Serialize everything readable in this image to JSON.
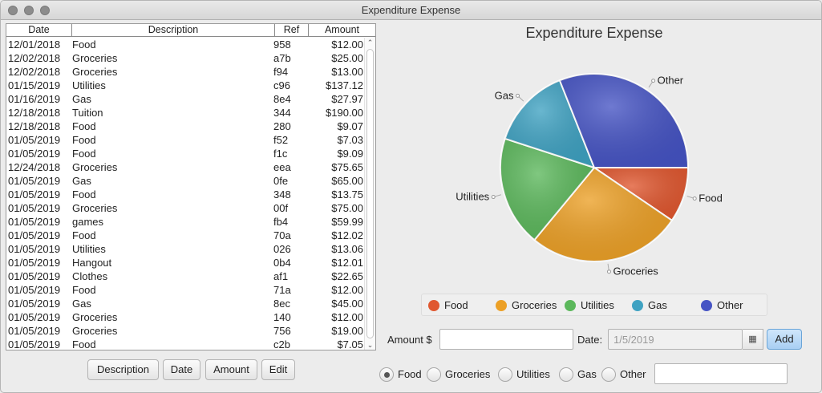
{
  "window": {
    "title": "Expenditure Expense"
  },
  "table": {
    "headers": {
      "date": "Date",
      "description": "Description",
      "ref": "Ref",
      "amount": "Amount"
    },
    "rows": [
      {
        "date": "12/01/2018",
        "description": "Food",
        "ref": "958",
        "amount": "$12.00"
      },
      {
        "date": "12/02/2018",
        "description": "Groceries",
        "ref": "a7b",
        "amount": "$25.00"
      },
      {
        "date": "12/02/2018",
        "description": "Groceries",
        "ref": "f94",
        "amount": "$13.00"
      },
      {
        "date": "01/15/2019",
        "description": "Utilities",
        "ref": "c96",
        "amount": "$137.12"
      },
      {
        "date": "01/16/2019",
        "description": "Gas",
        "ref": "8e4",
        "amount": "$27.97"
      },
      {
        "date": "12/18/2018",
        "description": "Tuition",
        "ref": "344",
        "amount": "$190.00"
      },
      {
        "date": "12/18/2018",
        "description": "Food",
        "ref": "280",
        "amount": "$9.07"
      },
      {
        "date": "01/05/2019",
        "description": "Food",
        "ref": "f52",
        "amount": "$7.03"
      },
      {
        "date": "01/05/2019",
        "description": "Food",
        "ref": "f1c",
        "amount": "$9.09"
      },
      {
        "date": "12/24/2018",
        "description": "Groceries",
        "ref": "eea",
        "amount": "$75.65"
      },
      {
        "date": "01/05/2019",
        "description": "Gas",
        "ref": "0fe",
        "amount": "$65.00"
      },
      {
        "date": "01/05/2019",
        "description": "Food",
        "ref": "348",
        "amount": "$13.75"
      },
      {
        "date": "01/05/2019",
        "description": "Groceries",
        "ref": "00f",
        "amount": "$75.00"
      },
      {
        "date": "01/05/2019",
        "description": "games",
        "ref": "fb4",
        "amount": "$59.99"
      },
      {
        "date": "01/05/2019",
        "description": "Food",
        "ref": "70a",
        "amount": "$12.02"
      },
      {
        "date": "01/05/2019",
        "description": "Utilities",
        "ref": "026",
        "amount": "$13.06"
      },
      {
        "date": "01/05/2019",
        "description": "Hangout",
        "ref": "0b4",
        "amount": "$12.01"
      },
      {
        "date": "01/05/2019",
        "description": "Clothes",
        "ref": "af1",
        "amount": "$22.65"
      },
      {
        "date": "01/05/2019",
        "description": "Food",
        "ref": "71a",
        "amount": "$12.00"
      },
      {
        "date": "01/05/2019",
        "description": "Gas",
        "ref": "8ec",
        "amount": "$45.00"
      },
      {
        "date": "01/05/2019",
        "description": "Groceries",
        "ref": "140",
        "amount": "$12.00"
      },
      {
        "date": "01/05/2019",
        "description": "Groceries",
        "ref": "756",
        "amount": "$19.00"
      },
      {
        "date": "01/05/2019",
        "description": "Food",
        "ref": "c2b",
        "amount": "$7.05"
      }
    ]
  },
  "sort_buttons": {
    "description": "Description",
    "date": "Date",
    "amount": "Amount",
    "edit": "Edit"
  },
  "chart_data": {
    "type": "pie",
    "title": "Expenditure Expense",
    "slices": [
      {
        "label": "Food",
        "value": 9.5,
        "color": "#e0572f"
      },
      {
        "label": "Groceries",
        "value": 26.5,
        "color": "#eca026"
      },
      {
        "label": "Utilities",
        "value": 19,
        "color": "#5cb85c"
      },
      {
        "label": "Gas",
        "value": 14,
        "color": "#3fa2c2"
      },
      {
        "label": "Other",
        "value": 31,
        "color": "#4654c4"
      }
    ],
    "legend": "bottom"
  },
  "form": {
    "amount_label": "Amount $",
    "amount_value": "",
    "date_label": "Date:",
    "date_value": "1/5/2019",
    "add_label": "Add",
    "calendar_icon": "calendar-icon"
  },
  "categories": {
    "selected": "Food",
    "options": [
      "Food",
      "Groceries",
      "Utilities",
      "Gas",
      "Other"
    ],
    "other_value": ""
  }
}
